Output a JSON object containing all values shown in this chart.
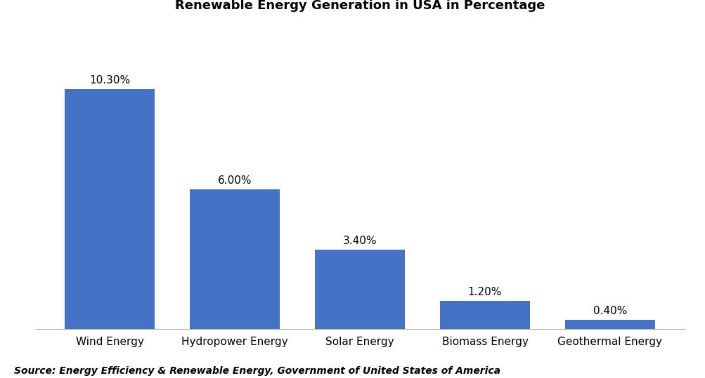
{
  "title": "Renewable Energy Generation in USA in Percentage",
  "categories": [
    "Wind Energy",
    "Hydropower Energy",
    "Solar Energy",
    "Biomass Energy",
    "Geothermal Energy"
  ],
  "values": [
    10.3,
    6.0,
    3.4,
    1.2,
    0.4
  ],
  "labels": [
    "10.30%",
    "6.00%",
    "3.40%",
    "1.20%",
    "0.40%"
  ],
  "bar_color": "#4472C4",
  "background_color": "#ffffff",
  "source_text": "Source: Energy Efficiency & Renewable Energy, Government of United States of America",
  "title_fontsize": 13,
  "label_fontsize": 11,
  "tick_fontsize": 11,
  "source_fontsize": 10,
  "ylim": [
    0,
    13
  ],
  "bar_width": 0.72
}
